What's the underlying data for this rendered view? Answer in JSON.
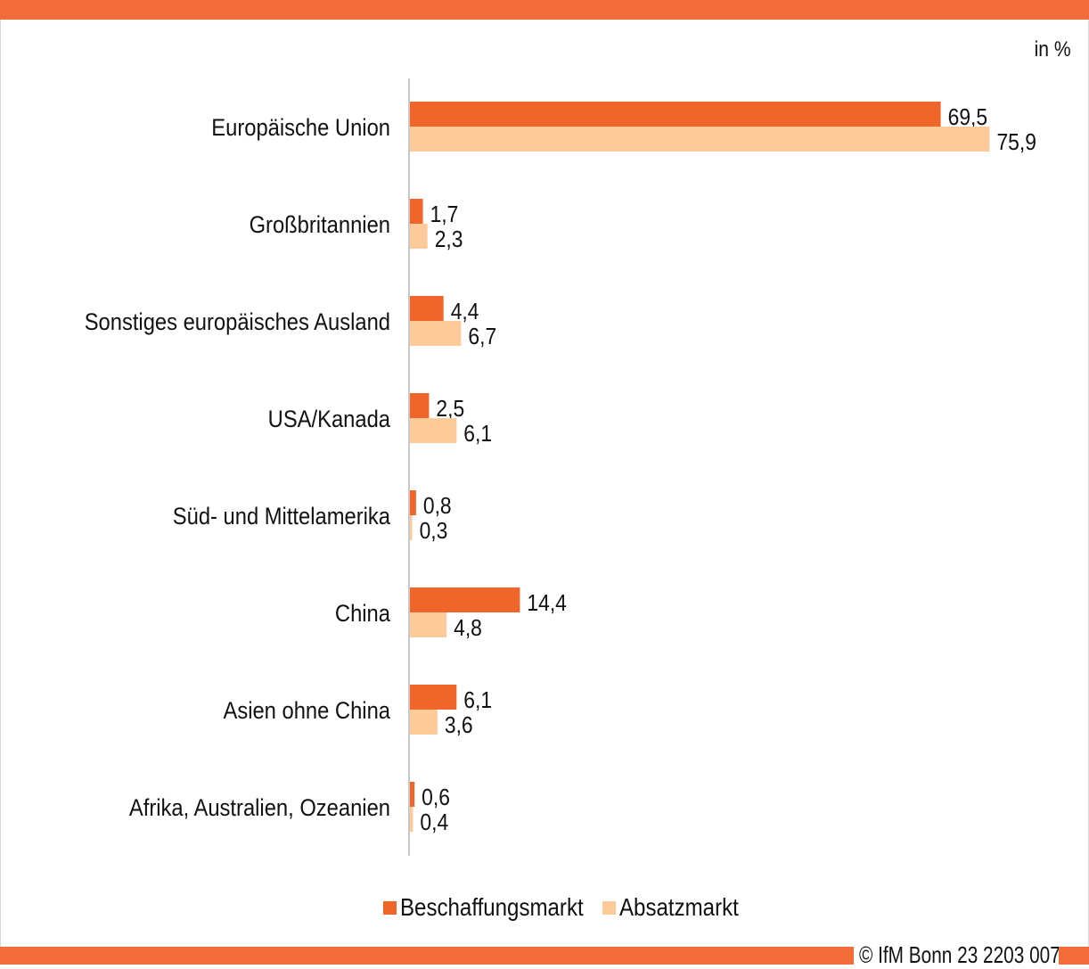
{
  "unit_label": "in %",
  "copyright": "© IfM Bonn 23 2203 007",
  "colors": {
    "accent": "#f26d3a",
    "beschaffung": "#f0652a",
    "absatz": "#fdcb9a"
  },
  "chart_data": {
    "type": "bar",
    "orientation": "horizontal",
    "categories": [
      "Europäische Union",
      "Großbritannien",
      "Sonstiges europäisches Ausland",
      "USA/Kanada",
      "Süd- und Mittelamerika",
      "China",
      "Asien ohne China",
      "Afrika, Australien, Ozeanien"
    ],
    "series": [
      {
        "name": "Beschaffungsmarkt",
        "values": [
          69.5,
          1.7,
          4.4,
          2.5,
          0.8,
          14.4,
          6.1,
          0.6
        ],
        "labels": [
          "69,5",
          "1,7",
          "4,4",
          "2,5",
          "0,8",
          "14,4",
          "6,1",
          "0,6"
        ]
      },
      {
        "name": "Absatzmarkt",
        "values": [
          75.9,
          2.3,
          6.7,
          6.1,
          0.3,
          4.8,
          3.6,
          0.4
        ],
        "labels": [
          "75,9",
          "2,3",
          "6,7",
          "6,1",
          "0,3",
          "4,8",
          "3,6",
          "0,4"
        ]
      }
    ],
    "xlim": [
      0,
      80
    ],
    "grid": false,
    "legend_position": "bottom"
  }
}
